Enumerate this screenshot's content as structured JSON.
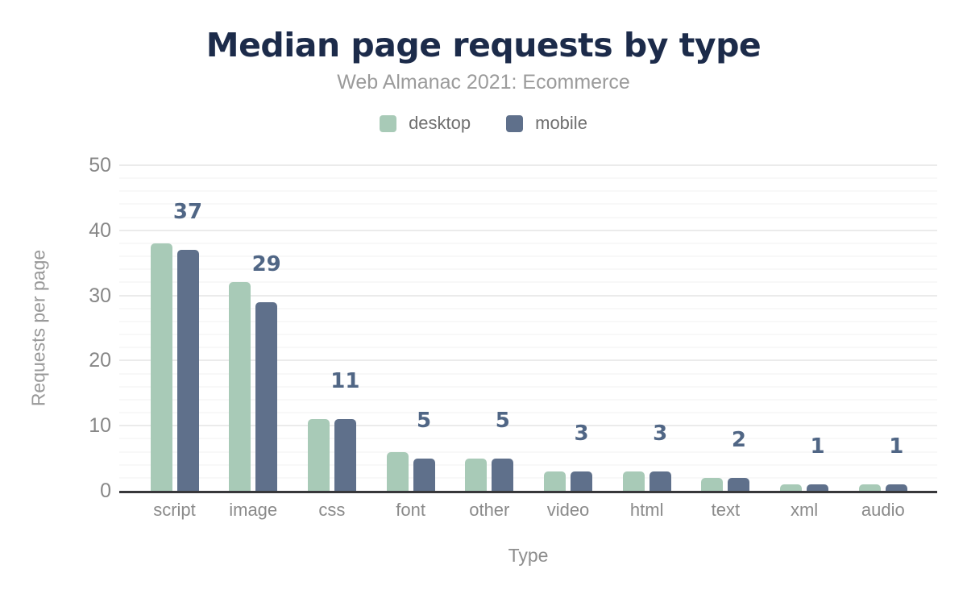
{
  "header": {
    "title": "Median page requests by type",
    "subtitle": "Web Almanac 2021: Ecommerce"
  },
  "legend": {
    "items": [
      {
        "label": "desktop",
        "color": "#a8cab7"
      },
      {
        "label": "mobile",
        "color": "#5f708b"
      }
    ]
  },
  "chart_data": {
    "type": "bar",
    "title": "Median page requests by type",
    "subtitle": "Web Almanac 2021: Ecommerce",
    "xlabel": "Type",
    "ylabel": "Requests per page",
    "categories": [
      "script",
      "image",
      "css",
      "font",
      "other",
      "video",
      "html",
      "text",
      "xml",
      "audio"
    ],
    "series": [
      {
        "name": "desktop",
        "color": "#a8cab7",
        "values": [
          38,
          32,
          11,
          6,
          5,
          3,
          3,
          2,
          1,
          1
        ]
      },
      {
        "name": "mobile",
        "color": "#5f708b",
        "values": [
          37,
          29,
          11,
          5,
          5,
          3,
          3,
          2,
          1,
          1
        ]
      }
    ],
    "value_labels": {
      "shown_for_series": "mobile",
      "values": [
        37,
        29,
        11,
        5,
        5,
        3,
        3,
        2,
        1,
        1
      ],
      "color": "#506685"
    },
    "ylim": [
      0,
      50
    ],
    "yticks": [
      0,
      10,
      20,
      30,
      40,
      50
    ],
    "minor_grid_step": 2,
    "grid": true,
    "legend_position": "top"
  },
  "colors": {
    "title": "#1c2b4a",
    "subtitle": "#9b9b9b",
    "legend_text": "#6f6f6f",
    "y_tick": "#878787",
    "x_tick": "#8a8a8a",
    "axis_title": "#989898",
    "axis_line": "#37373a",
    "grid_major": "#ebebeb",
    "grid_minor": "#f8f8f8",
    "background": "#ffffff"
  }
}
